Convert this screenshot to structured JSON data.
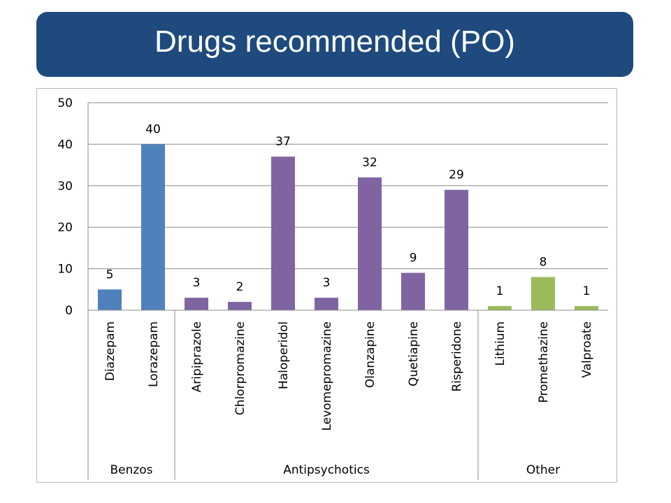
{
  "title": "Drugs recommended (PO)",
  "chart_data": {
    "type": "bar",
    "title": "Drugs recommended (PO)",
    "xlabel": "",
    "ylabel": "",
    "ylim": [
      0,
      50
    ],
    "yticks": [
      0,
      10,
      20,
      30,
      40,
      50
    ],
    "grid": true,
    "legend": "none",
    "categories": [
      "Diazepam",
      "Lorazepam",
      "Aripiprazole",
      "Chlorpromazine",
      "Haloperidol",
      "Levomepromazine",
      "Olanzapine",
      "Quetiapine",
      "Risperidone",
      "Lithium",
      "Promethazine",
      "Valproate"
    ],
    "values": [
      5,
      40,
      3,
      2,
      37,
      3,
      32,
      9,
      29,
      1,
      8,
      1
    ],
    "bar_groups": [
      "Benzos",
      "Benzos",
      "Antipsychotics",
      "Antipsychotics",
      "Antipsychotics",
      "Antipsychotics",
      "Antipsychotics",
      "Antipsychotics",
      "Antipsychotics",
      "Other",
      "Other",
      "Other"
    ],
    "groups": [
      {
        "label": "Benzos",
        "count": 2,
        "color": "#4f81bd"
      },
      {
        "label": "Antipsychotics",
        "count": 7,
        "color": "#8064a2"
      },
      {
        "label": "Other",
        "count": 3,
        "color": "#9bbb59"
      }
    ]
  }
}
